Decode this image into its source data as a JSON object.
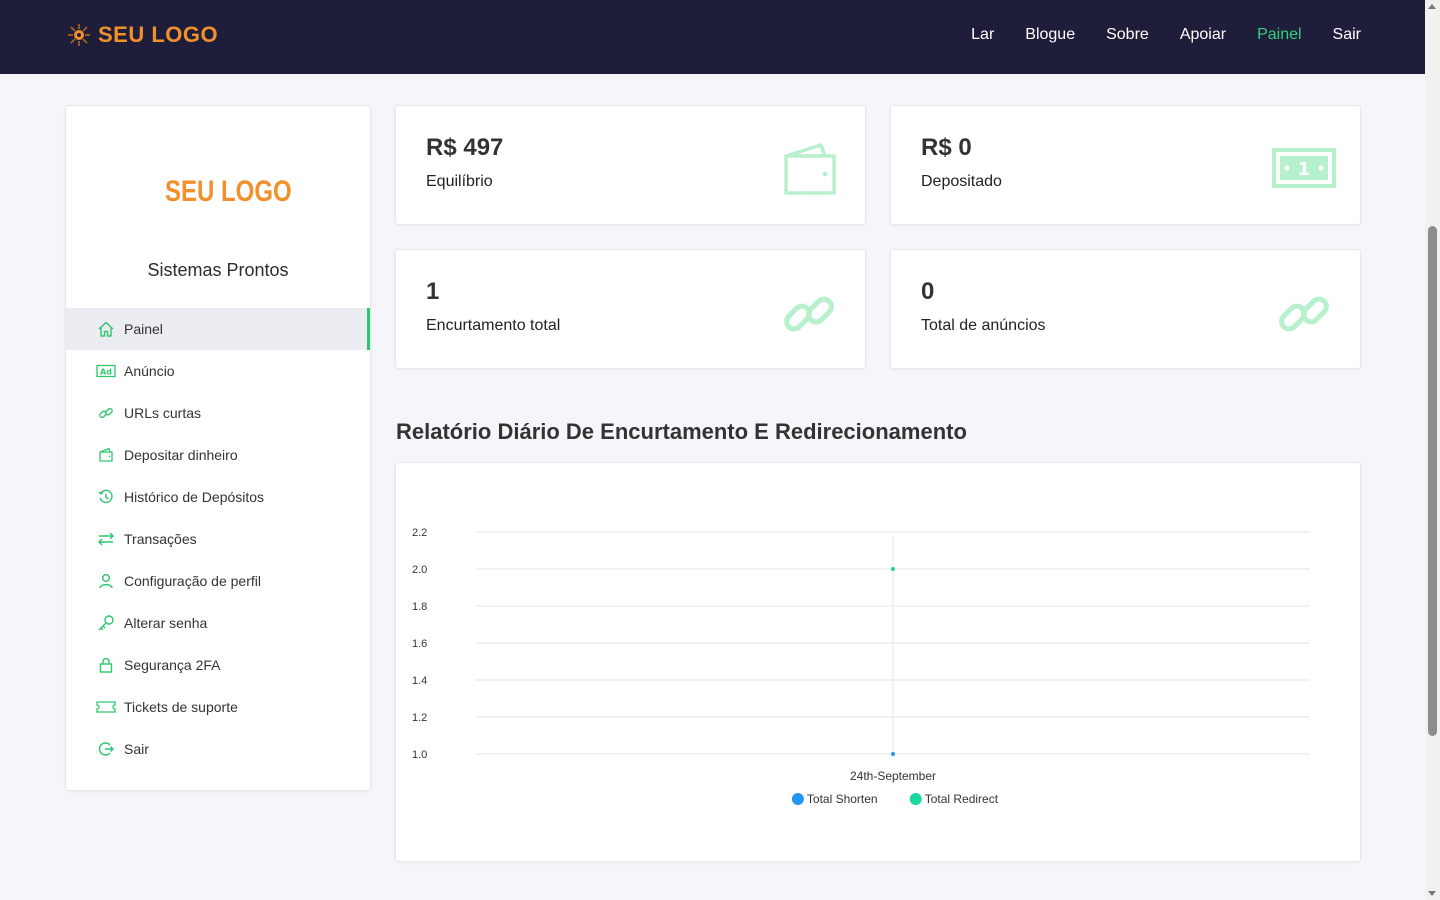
{
  "header": {
    "brand": "SEU LOGO",
    "nav": [
      "Lar",
      "Blogue",
      "Sobre",
      "Apoiar",
      "Painel",
      "Sair"
    ],
    "active_nav": "Painel"
  },
  "sidebar": {
    "logo_text": "SEU LOGO",
    "title": "Sistemas Prontos",
    "items": [
      {
        "label": "Painel",
        "icon": "home-icon"
      },
      {
        "label": "Anúncio",
        "icon": "ad-icon"
      },
      {
        "label": "URLs curtas",
        "icon": "link-icon"
      },
      {
        "label": "Depositar dinheiro",
        "icon": "wallet-icon"
      },
      {
        "label": "Histórico de Depósitos",
        "icon": "history-icon"
      },
      {
        "label": "Transações",
        "icon": "transfer-icon"
      },
      {
        "label": "Configuração de perfil",
        "icon": "user-icon"
      },
      {
        "label": "Alterar senha",
        "icon": "key-icon"
      },
      {
        "label": "Segurança 2FA",
        "icon": "lock-icon"
      },
      {
        "label": "Tickets de suporte",
        "icon": "ticket-icon"
      },
      {
        "label": "Sair",
        "icon": "logout-icon"
      }
    ]
  },
  "stats": [
    {
      "value": "R$ 497",
      "label": "Equilíbrio",
      "icon": "wallet-icon"
    },
    {
      "value": "R$ 0",
      "label": "Depositado",
      "icon": "money-icon"
    },
    {
      "value": "1",
      "label": "Encurtamento total",
      "icon": "link-icon"
    },
    {
      "value": "0",
      "label": "Total de anúncios",
      "icon": "link-icon"
    }
  ],
  "report": {
    "title": "Relatório Diário De Encurtamento E Redirecionamento"
  },
  "chart_data": {
    "type": "line",
    "categories": [
      "24th-September"
    ],
    "series": [
      {
        "name": "Total Shorten",
        "values": [
          1
        ],
        "color": "#2196f3"
      },
      {
        "name": "Total Redirect",
        "values": [
          2
        ],
        "color": "#1dd6a0"
      }
    ],
    "ylim": [
      1.0,
      2.2
    ],
    "yticks": [
      "2.2",
      "2.0",
      "1.8",
      "1.6",
      "1.4",
      "1.2",
      "1.0"
    ],
    "grid": true,
    "legend_position": "bottom"
  },
  "colors": {
    "accent": "#2dc76d",
    "header_bg": "#1e1e3a",
    "brand": "#f2902c",
    "icon_light": "#b7f0cd"
  }
}
